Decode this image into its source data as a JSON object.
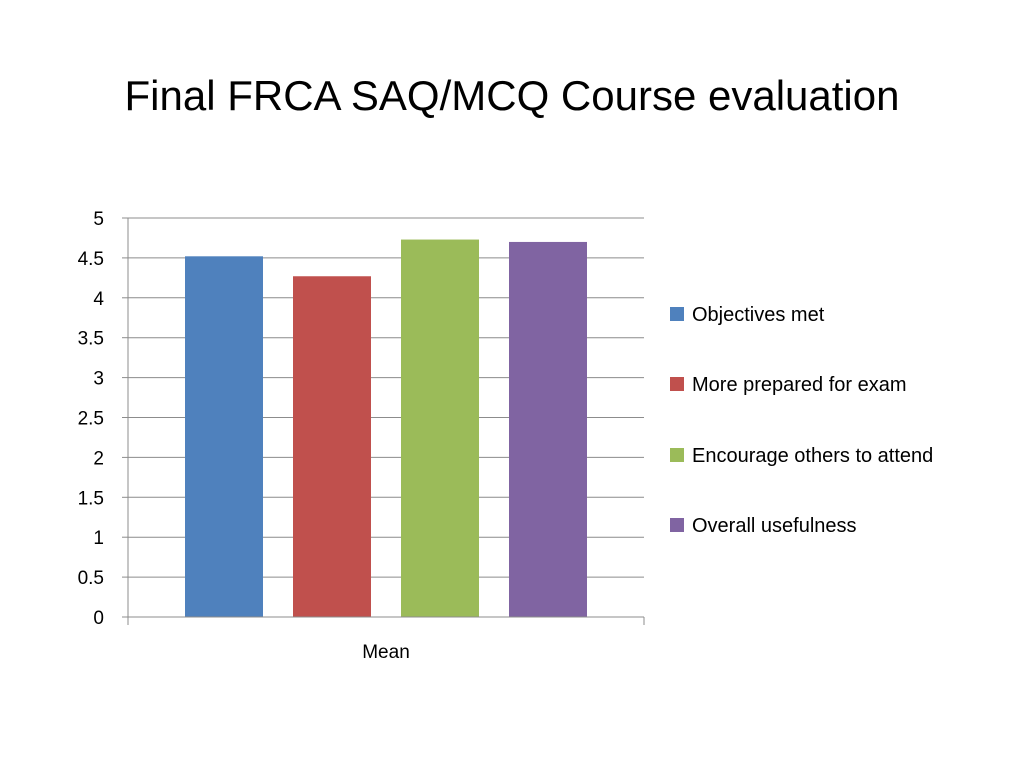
{
  "slide": {
    "title": "Final FRCA SAQ/MCQ Course evaluation"
  },
  "chart_data": {
    "type": "bar",
    "categories": [
      "Mean"
    ],
    "series": [
      {
        "name": "Objectives met",
        "values": [
          4.52
        ],
        "color": "#4F81BD"
      },
      {
        "name": "More prepared for exam",
        "values": [
          4.27
        ],
        "color": "#C0504D"
      },
      {
        "name": "Encourage others to attend",
        "values": [
          4.73
        ],
        "color": "#9BBB59"
      },
      {
        "name": "Overall usefulness",
        "values": [
          4.7
        ],
        "color": "#8064A2"
      }
    ],
    "ylim": [
      0,
      5
    ],
    "yticks": [
      "0",
      "0.5",
      "1",
      "1.5",
      "2",
      "2.5",
      "3",
      "3.5",
      "4",
      "4.5",
      "5"
    ],
    "grid": true,
    "legend": "right"
  }
}
